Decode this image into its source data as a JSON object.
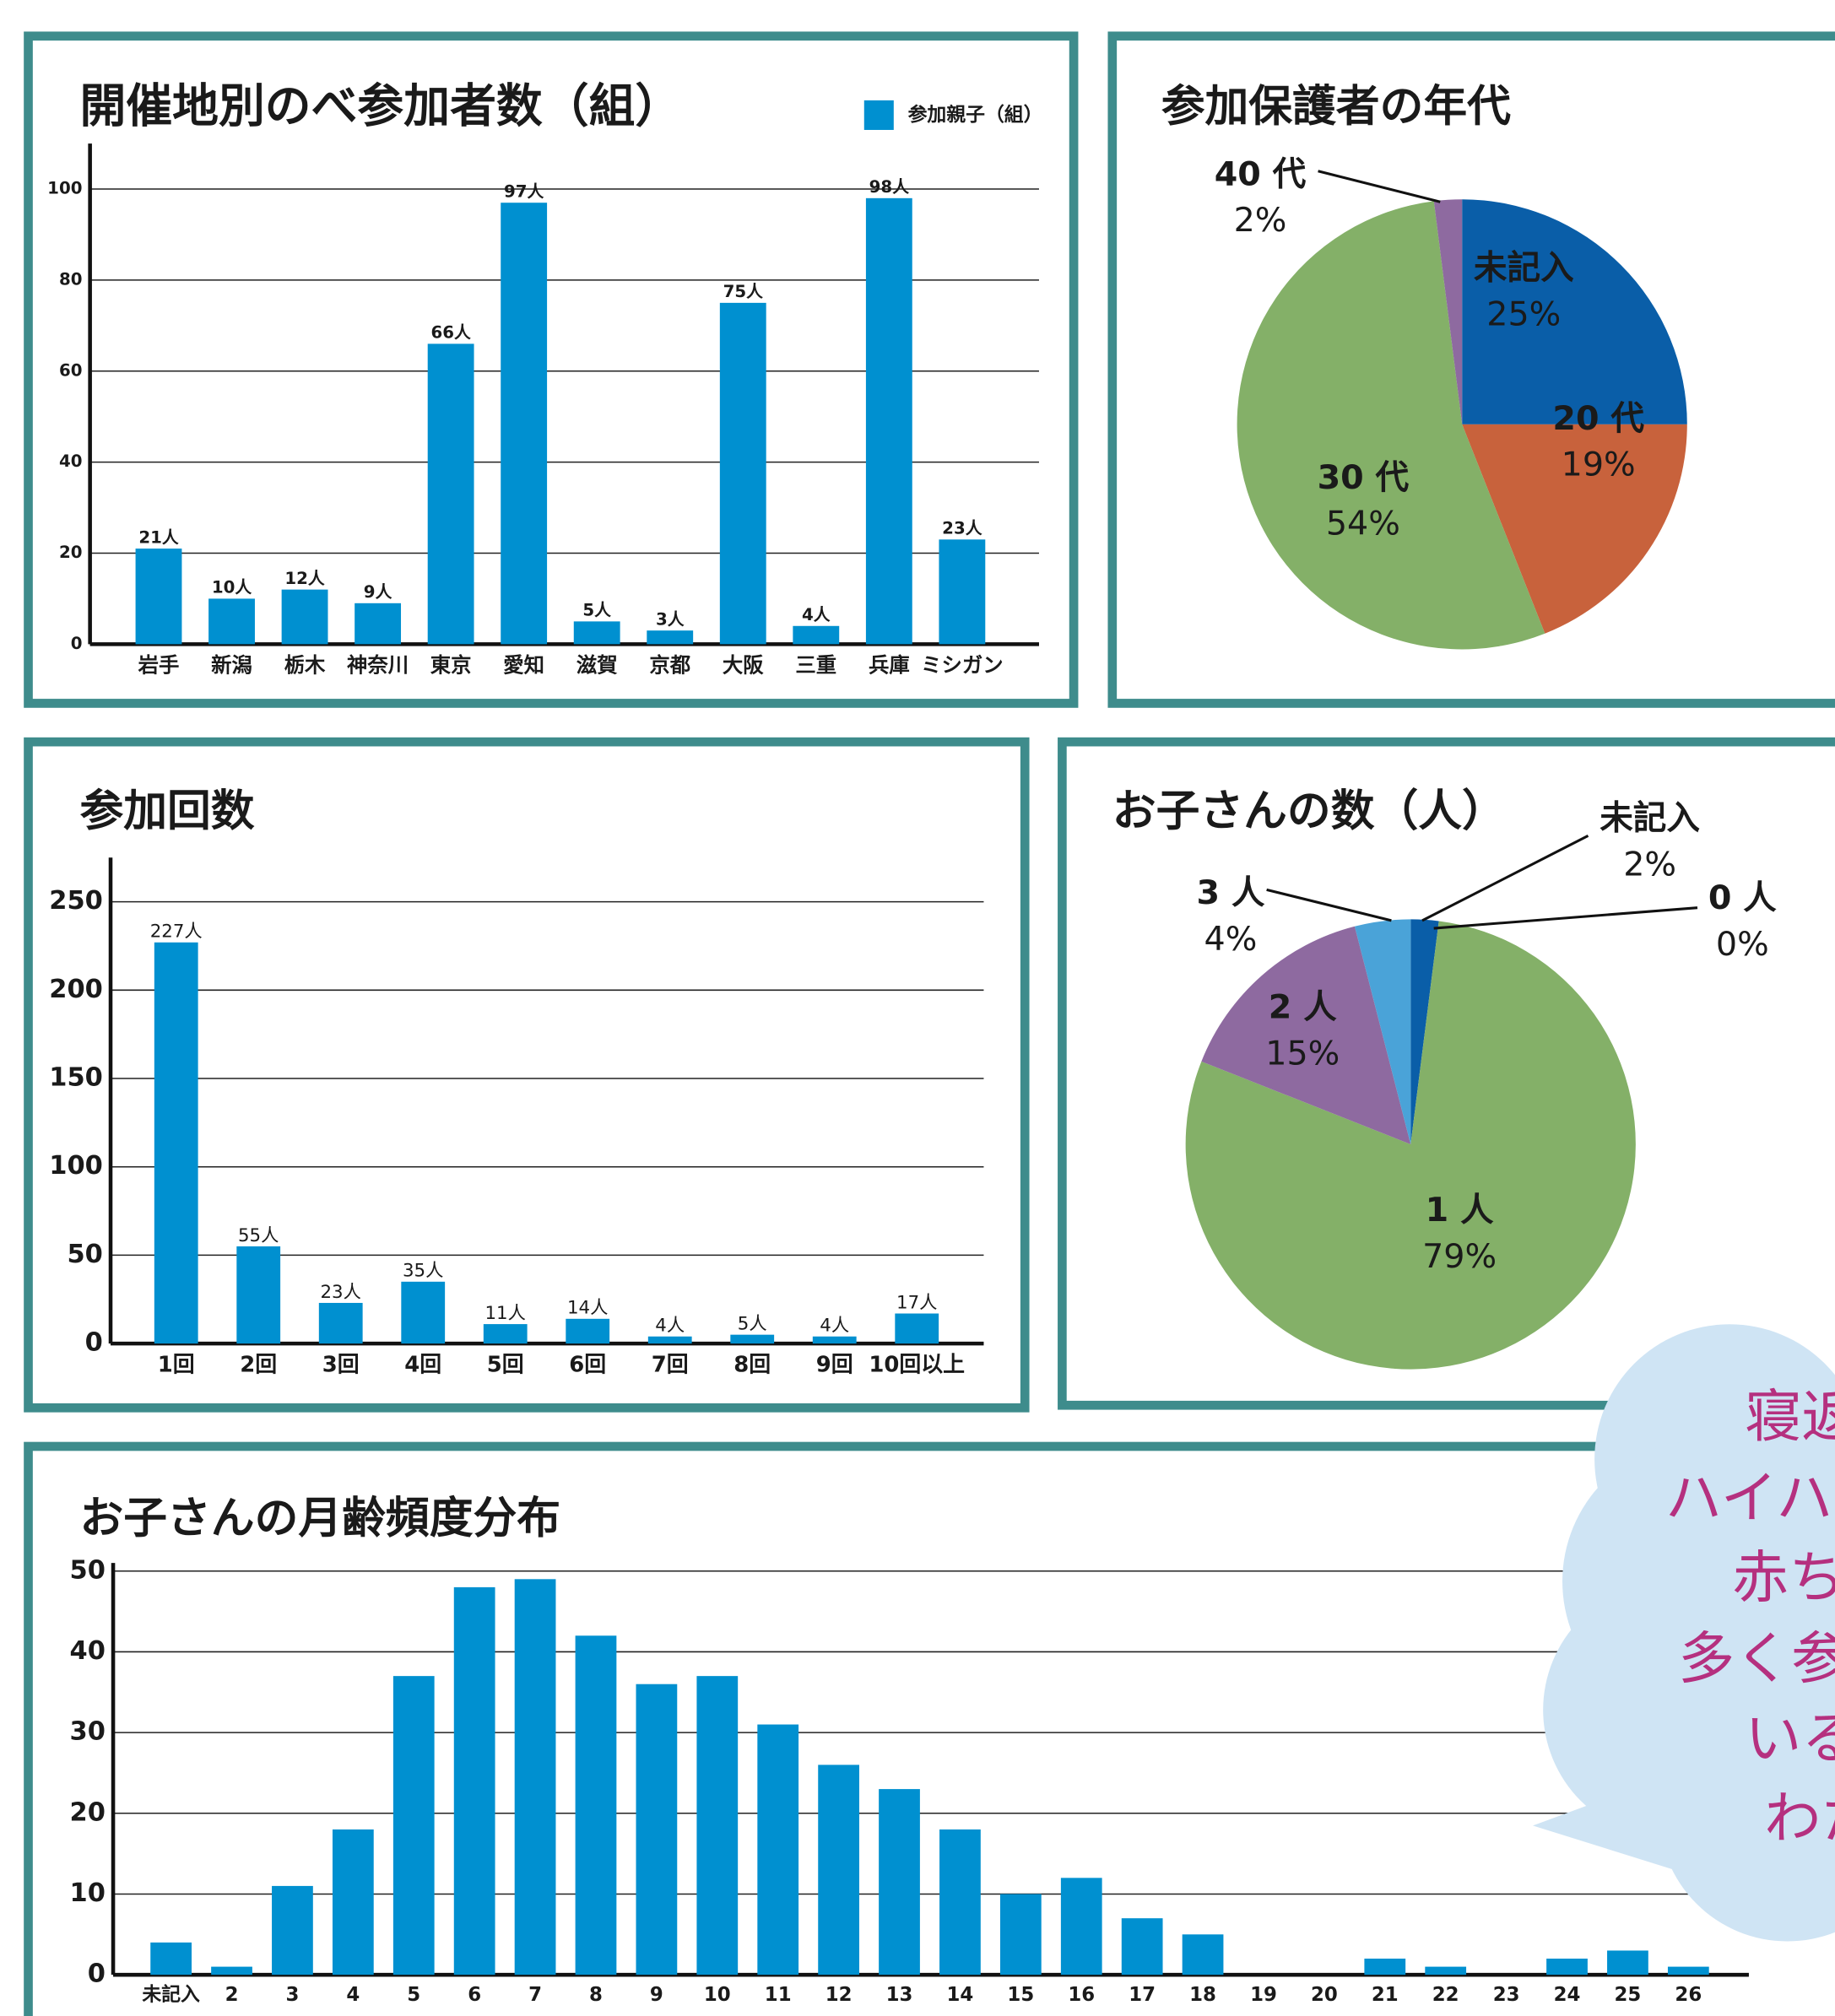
{
  "chart_data": [
    {
      "type": "bar",
      "title": "開催地別のべ参加者数（組）",
      "categories": [
        "岩手",
        "新潟",
        "栃木",
        "神奈川",
        "東京",
        "愛知",
        "滋賀",
        "京都",
        "大阪",
        "三重",
        "兵庫",
        "ミシガン"
      ],
      "series": [
        {
          "name": "参加親子（組）",
          "color": "#0090d0",
          "values": [
            21,
            10,
            12,
            9,
            66,
            97,
            5,
            3,
            75,
            4,
            98,
            23
          ],
          "value_labels": [
            "21人",
            "10人",
            "12人",
            "9人",
            "66人",
            "97人",
            "5人",
            "3人",
            "75人",
            "4人",
            "98人",
            "23人"
          ]
        }
      ],
      "ylim": [
        0,
        110
      ],
      "yticks": [
        0,
        20,
        40,
        60,
        80,
        100
      ],
      "grid": true,
      "legend": "top-right"
    },
    {
      "type": "pie",
      "title": "参加保護者の年代",
      "categories": [
        "未記入",
        "20 代",
        "30 代",
        "40 代"
      ],
      "values": [
        25,
        19,
        54,
        2
      ],
      "value_labels": [
        "25%",
        "19%",
        "54%",
        "2%"
      ],
      "colors": [
        "#0a5ea8",
        "#c8623c",
        "#84b068",
        "#8e6aa0"
      ]
    },
    {
      "type": "bar",
      "title": "参加回数",
      "categories": [
        "1回",
        "2回",
        "3回",
        "4回",
        "5回",
        "6回",
        "7回",
        "8回",
        "9回",
        "10回以上"
      ],
      "values": [
        227,
        55,
        23,
        35,
        11,
        14,
        4,
        5,
        4,
        17
      ],
      "value_labels": [
        "227人",
        "55人",
        "23人",
        "35人",
        "11人",
        "14人",
        "4人",
        "5人",
        "4人",
        "17人"
      ],
      "color": "#0090d0",
      "ylim": [
        0,
        275
      ],
      "yticks": [
        0,
        50,
        100,
        150,
        200,
        250
      ],
      "grid": true
    },
    {
      "type": "pie",
      "title": "お子さんの数（人）",
      "categories": [
        "未記入",
        "0 人",
        "1 人",
        "2 人",
        "3 人"
      ],
      "values": [
        2,
        0,
        79,
        15,
        4
      ],
      "value_labels": [
        "2%",
        "0%",
        "79%",
        "15%",
        "4%"
      ],
      "colors": [
        "#0a5ea8",
        "#0a5ea8",
        "#84b068",
        "#8e6aa0",
        "#4aa3d8"
      ]
    },
    {
      "type": "bar",
      "title": "お子さんの月齢頻度分布",
      "categories": [
        "未記入",
        "2",
        "3",
        "4",
        "5",
        "6",
        "7",
        "8",
        "9",
        "10",
        "11",
        "12",
        "13",
        "14",
        "15",
        "16",
        "17",
        "18",
        "19",
        "20",
        "21",
        "22",
        "23",
        "24",
        "25",
        "26"
      ],
      "values": [
        4,
        1,
        11,
        18,
        37,
        48,
        49,
        42,
        36,
        37,
        31,
        26,
        23,
        18,
        10,
        12,
        7,
        5,
        0,
        0,
        2,
        1,
        0,
        2,
        3,
        1
      ],
      "color": "#0090d0",
      "ylim": [
        0,
        51
      ],
      "yticks": [
        0,
        10,
        20,
        30,
        40,
        50
      ],
      "grid": true
    }
  ],
  "callout": {
    "lines": [
      "寝返",
      "ハイハ",
      "赤ち",
      "多く参",
      "いる",
      "わた"
    ]
  }
}
